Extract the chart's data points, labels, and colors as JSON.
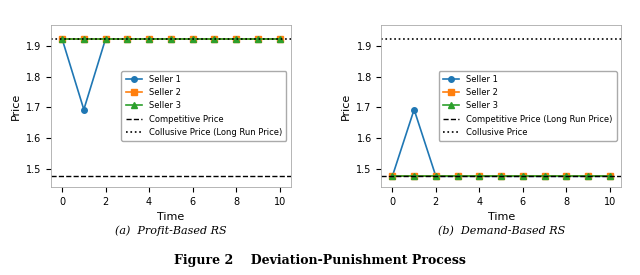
{
  "time": [
    0,
    1,
    2,
    3,
    4,
    5,
    6,
    7,
    8,
    9,
    10
  ],
  "collusive_price": 1.924,
  "competitive_price": 1.475,
  "left": {
    "seller1": [
      1.924,
      1.693,
      1.924,
      1.924,
      1.924,
      1.924,
      1.924,
      1.924,
      1.924,
      1.924,
      1.924
    ],
    "seller2": [
      1.924,
      1.924,
      1.924,
      1.924,
      1.924,
      1.924,
      1.924,
      1.924,
      1.924,
      1.924,
      1.924
    ],
    "seller3": [
      1.924,
      1.924,
      1.924,
      1.924,
      1.924,
      1.924,
      1.924,
      1.924,
      1.924,
      1.924,
      1.924
    ],
    "xlabel": "Time",
    "ylabel": "Price",
    "subtitle": "(a)  Profit-Based RS",
    "legend_dashed": "Competitive Price",
    "legend_dotted": "Collusive Price (Long Run Price)",
    "ylim": [
      1.44,
      1.97
    ]
  },
  "right": {
    "seller1": [
      1.475,
      1.693,
      1.475,
      1.475,
      1.475,
      1.475,
      1.475,
      1.475,
      1.475,
      1.475,
      1.475
    ],
    "seller2": [
      1.475,
      1.475,
      1.475,
      1.475,
      1.475,
      1.475,
      1.475,
      1.475,
      1.475,
      1.475,
      1.475
    ],
    "seller3": [
      1.475,
      1.475,
      1.475,
      1.475,
      1.475,
      1.475,
      1.475,
      1.475,
      1.475,
      1.475,
      1.475
    ],
    "xlabel": "Time",
    "ylabel": "Price",
    "subtitle": "(b)  Demand-Based RS",
    "legend_dashed": "Competitive Price (Long Run Price)",
    "legend_dotted": "Collusive Price",
    "ylim": [
      1.44,
      1.97
    ]
  },
  "figure_label": "Figure 2",
  "figure_title": "Deviation-Punishment Process",
  "seller1_color": "#1f77b4",
  "seller2_color": "#ff7f0e",
  "seller3_color": "#2ca02c",
  "seller1_marker": "o",
  "seller2_marker": "s",
  "seller3_marker": "^",
  "markersize": 4,
  "linewidth": 1.2,
  "legend_fontsize": 6,
  "tick_fontsize": 7,
  "label_fontsize": 8
}
